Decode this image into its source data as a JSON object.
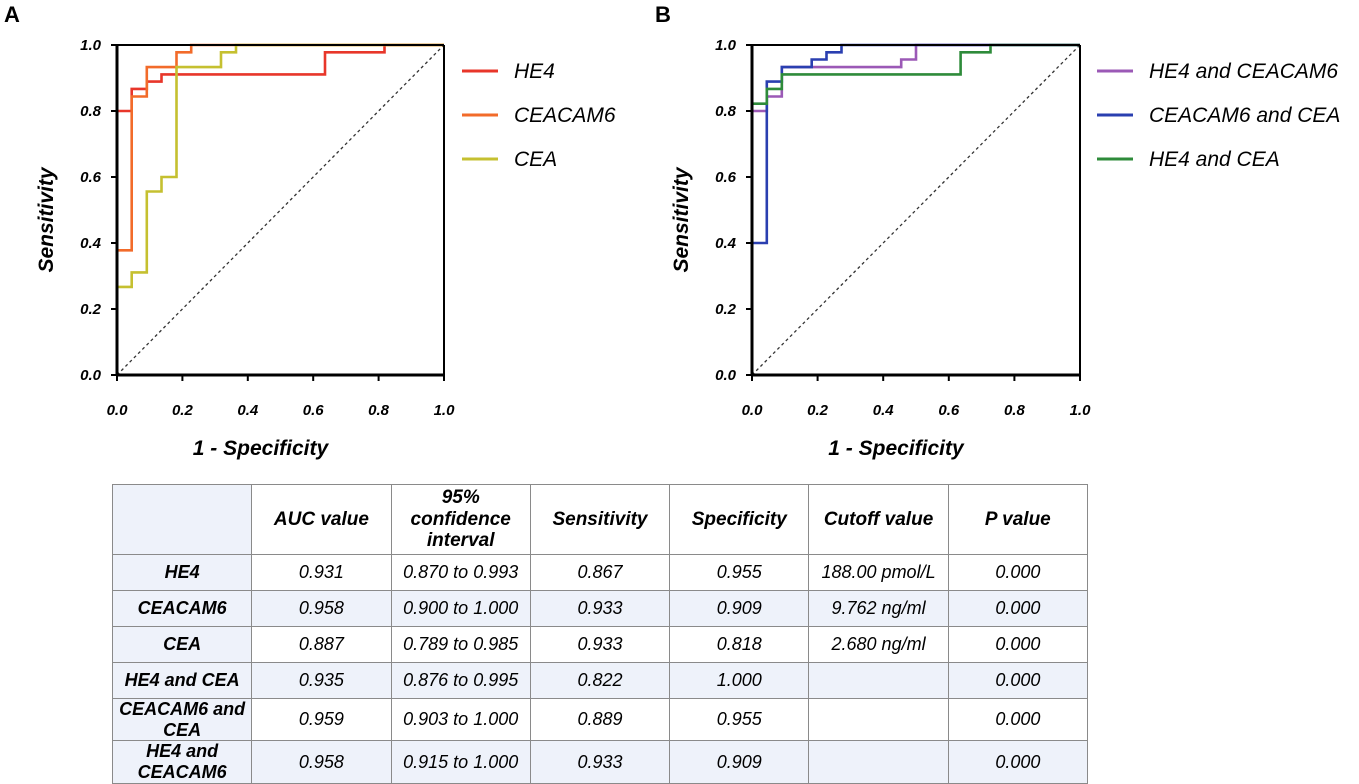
{
  "chart_data": [
    {
      "type": "line",
      "panel": "A",
      "xlabel": "1 - Specificity",
      "ylabel": "Sensitivity",
      "xlim": [
        0,
        1
      ],
      "ylim": [
        0,
        1
      ],
      "xticks": [
        "0.0",
        "0.2",
        "0.4",
        "0.6",
        "0.8",
        "1.0"
      ],
      "yticks": [
        "0.0",
        "0.2",
        "0.4",
        "0.6",
        "0.8",
        "1.0"
      ],
      "diagonal": true,
      "series": [
        {
          "name": "HE4",
          "color": "#e8362a",
          "points": [
            [
              0,
              0
            ],
            [
              0,
              0.8
            ],
            [
              0.045,
              0.8
            ],
            [
              0.045,
              0.867
            ],
            [
              0.091,
              0.867
            ],
            [
              0.091,
              0.889
            ],
            [
              0.136,
              0.889
            ],
            [
              0.136,
              0.911
            ],
            [
              0.636,
              0.911
            ],
            [
              0.636,
              0.978
            ],
            [
              0.818,
              0.978
            ],
            [
              0.818,
              1.0
            ],
            [
              1.0,
              1.0
            ]
          ]
        },
        {
          "name": "CEACAM6",
          "color": "#f26b2a",
          "points": [
            [
              0,
              0
            ],
            [
              0,
              0.378
            ],
            [
              0.045,
              0.378
            ],
            [
              0.045,
              0.844
            ],
            [
              0.091,
              0.844
            ],
            [
              0.091,
              0.933
            ],
            [
              0.182,
              0.933
            ],
            [
              0.182,
              0.978
            ],
            [
              0.227,
              0.978
            ],
            [
              0.227,
              1.0
            ],
            [
              1.0,
              1.0
            ]
          ]
        },
        {
          "name": "CEA",
          "color": "#c5c030",
          "points": [
            [
              0,
              0
            ],
            [
              0,
              0.267
            ],
            [
              0.045,
              0.267
            ],
            [
              0.045,
              0.311
            ],
            [
              0.091,
              0.311
            ],
            [
              0.091,
              0.556
            ],
            [
              0.136,
              0.556
            ],
            [
              0.136,
              0.6
            ],
            [
              0.182,
              0.6
            ],
            [
              0.182,
              0.933
            ],
            [
              0.318,
              0.933
            ],
            [
              0.318,
              0.978
            ],
            [
              0.364,
              0.978
            ],
            [
              0.364,
              1.0
            ],
            [
              1.0,
              1.0
            ]
          ]
        }
      ]
    },
    {
      "type": "line",
      "panel": "B",
      "xlabel": "1 - Specificity",
      "ylabel": "Sensitivity",
      "xlim": [
        0,
        1
      ],
      "ylim": [
        0,
        1
      ],
      "xticks": [
        "0.0",
        "0.2",
        "0.4",
        "0.6",
        "0.8",
        "1.0"
      ],
      "yticks": [
        "0.0",
        "0.2",
        "0.4",
        "0.6",
        "0.8",
        "1.0"
      ],
      "diagonal": true,
      "series": [
        {
          "name": "HE4 and CEACAM6",
          "color": "#9b59b6",
          "points": [
            [
              0,
              0
            ],
            [
              0,
              0.8
            ],
            [
              0.045,
              0.8
            ],
            [
              0.045,
              0.844
            ],
            [
              0.091,
              0.844
            ],
            [
              0.091,
              0.933
            ],
            [
              0.455,
              0.933
            ],
            [
              0.455,
              0.956
            ],
            [
              0.5,
              0.956
            ],
            [
              0.5,
              1.0
            ],
            [
              1.0,
              1.0
            ]
          ]
        },
        {
          "name": "CEACAM6 and CEA",
          "color": "#2a3fb0",
          "points": [
            [
              0,
              0
            ],
            [
              0,
              0.4
            ],
            [
              0.045,
              0.4
            ],
            [
              0.045,
              0.889
            ],
            [
              0.091,
              0.889
            ],
            [
              0.091,
              0.933
            ],
            [
              0.182,
              0.933
            ],
            [
              0.182,
              0.956
            ],
            [
              0.227,
              0.956
            ],
            [
              0.227,
              0.978
            ],
            [
              0.273,
              0.978
            ],
            [
              0.273,
              1.0
            ],
            [
              1.0,
              1.0
            ]
          ]
        },
        {
          "name": "HE4 and CEA",
          "color": "#2e8b3a",
          "points": [
            [
              0,
              0
            ],
            [
              0,
              0.822
            ],
            [
              0.045,
              0.822
            ],
            [
              0.045,
              0.867
            ],
            [
              0.091,
              0.867
            ],
            [
              0.091,
              0.911
            ],
            [
              0.636,
              0.911
            ],
            [
              0.636,
              0.978
            ],
            [
              0.727,
              0.978
            ],
            [
              0.727,
              1.0
            ],
            [
              1.0,
              1.0
            ]
          ]
        }
      ]
    },
    {
      "type": "table",
      "columns": [
        "",
        "AUC value",
        "95% confidence interval",
        "Sensitivity",
        "Specificity",
        "Cutoff value",
        "P value"
      ],
      "rows": [
        [
          "HE4",
          "0.931",
          "0.870 to 0.993",
          "0.867",
          "0.955",
          "188.00 pmol/L",
          "0.000"
        ],
        [
          "CEACAM6",
          "0.958",
          "0.900 to 1.000",
          "0.933",
          "0.909",
          "9.762 ng/ml",
          "0.000"
        ],
        [
          "CEA",
          "0.887",
          "0.789 to 0.985",
          "0.933",
          "0.818",
          "2.680 ng/ml",
          "0.000"
        ],
        [
          "HE4 and CEA",
          "0.935",
          "0.876 to 0.995",
          "0.822",
          "1.000",
          "",
          "0.000"
        ],
        [
          "CEACAM6 and CEA",
          "0.959",
          "0.903 to 1.000",
          "0.889",
          "0.955",
          "",
          "0.000"
        ],
        [
          "HE4 and CEACAM6",
          "0.958",
          "0.915 to 1.000",
          "0.933",
          "0.909",
          "",
          "0.000"
        ]
      ]
    }
  ]
}
